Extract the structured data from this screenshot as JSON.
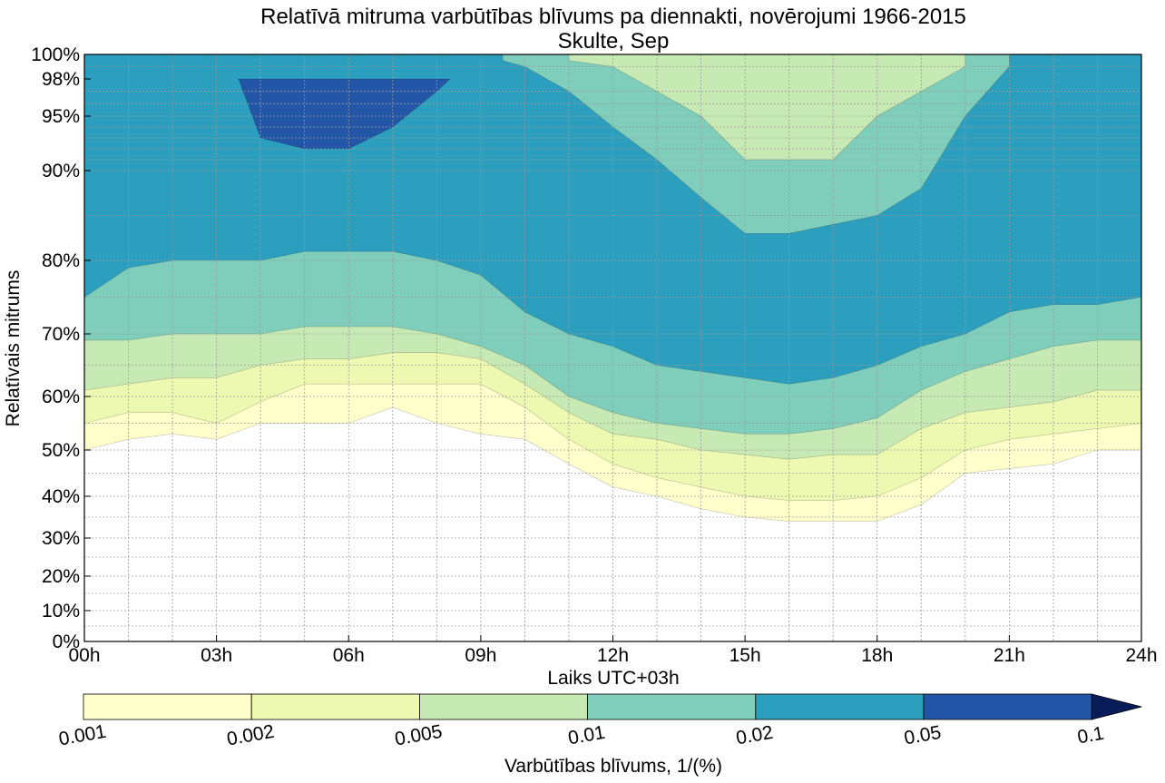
{
  "chart_data": {
    "type": "contourf",
    "title": "Relatīvā mitruma varbūtības blīvums pa diennakti, novērojumi 1966-2015",
    "subtitle": "Skulte, Sep",
    "xlabel": "Laiks UTC+03h",
    "ylabel": "Relatīvais mitrums",
    "x_ticks": [
      "00h",
      "03h",
      "06h",
      "09h",
      "12h",
      "15h",
      "18h",
      "21h",
      "24h"
    ],
    "x_range_hours": [
      0,
      24
    ],
    "y_ticks": [
      "0%",
      "10%",
      "20%",
      "30%",
      "40%",
      "50%",
      "60%",
      "70%",
      "80%",
      "90%",
      "95%",
      "98%",
      "100%"
    ],
    "y_range_percent": [
      0,
      100
    ],
    "grid": true,
    "colorbar": {
      "label": "Varbūtības blīvums, 1/(%)",
      "levels": [
        "0.001",
        "0.002",
        "0.005",
        "0.01",
        "0.02",
        "0.05",
        "0.1"
      ],
      "colors": [
        "#ffffcc",
        "#edf8b1",
        "#c7e9b4",
        "#7fcdbb",
        "#2c9fbf",
        "#2356a7",
        "#081d58"
      ],
      "extend": "max"
    },
    "density_bands": [
      {
        "level": "0.001",
        "color": "#ffffcc",
        "lower_rh": [
          50,
          52,
          53,
          52,
          55,
          55,
          55,
          58,
          55,
          53,
          52,
          47,
          42,
          40,
          37,
          35,
          34,
          34,
          34,
          38,
          45,
          46,
          47,
          50,
          50
        ]
      },
      {
        "level": "0.002",
        "color": "#edf8b1",
        "lower_rh": [
          55,
          57,
          57,
          55,
          59,
          62,
          62,
          62,
          62,
          62,
          58,
          52,
          47,
          44,
          42,
          40,
          39,
          39,
          40,
          44,
          50,
          52,
          53,
          54,
          55
        ]
      },
      {
        "level": "0.005",
        "color": "#c7e9b4",
        "lower_rh": [
          61,
          62,
          63,
          63,
          65,
          66,
          66,
          67,
          67,
          66,
          62,
          57,
          53,
          52,
          50,
          49,
          48,
          49,
          49,
          54,
          57,
          58,
          59,
          61,
          61
        ]
      },
      {
        "level": "0.01",
        "color": "#7fcdbb",
        "lower_rh": [
          69,
          69,
          70,
          70,
          70,
          71,
          71,
          71,
          70,
          68,
          65,
          60,
          57,
          55,
          54,
          53,
          53,
          54,
          56,
          61,
          64,
          66,
          68,
          69,
          69
        ]
      },
      {
        "level": "0.02",
        "color": "#2c9fbf",
        "lower_rh": [
          75,
          79,
          80,
          80,
          80,
          81,
          81,
          81,
          80,
          78,
          73,
          70,
          68,
          65,
          64,
          63,
          62,
          63,
          65,
          68,
          70,
          73,
          74,
          74,
          75
        ]
      },
      {
        "level": "0.05",
        "color": "#2356a7",
        "lower_rh": [
          null,
          null,
          null,
          null,
          93,
          92,
          92,
          94,
          97,
          null,
          null,
          null,
          null,
          null,
          null,
          null,
          null,
          null,
          null,
          null,
          null,
          null,
          null,
          null,
          null
        ]
      }
    ],
    "high_humidity_dry_region": {
      "level": "0.01",
      "color": "#7fcdbb",
      "x_hours": [
        9.5,
        10,
        11,
        12,
        13,
        14,
        15,
        16,
        17,
        18,
        19,
        20,
        21
      ],
      "lower_rh": [
        99.5,
        99,
        97,
        94,
        91,
        87,
        83,
        83,
        84,
        85,
        88,
        95,
        99
      ]
    },
    "inner_light_region": {
      "level": "0.005",
      "color": "#c7e9b4",
      "x_hours": [
        11,
        12,
        13,
        14,
        15,
        16,
        17,
        18,
        19,
        20
      ],
      "lower_rh": [
        99.5,
        99,
        97,
        95,
        91,
        91,
        91,
        95,
        97,
        99
      ]
    }
  }
}
